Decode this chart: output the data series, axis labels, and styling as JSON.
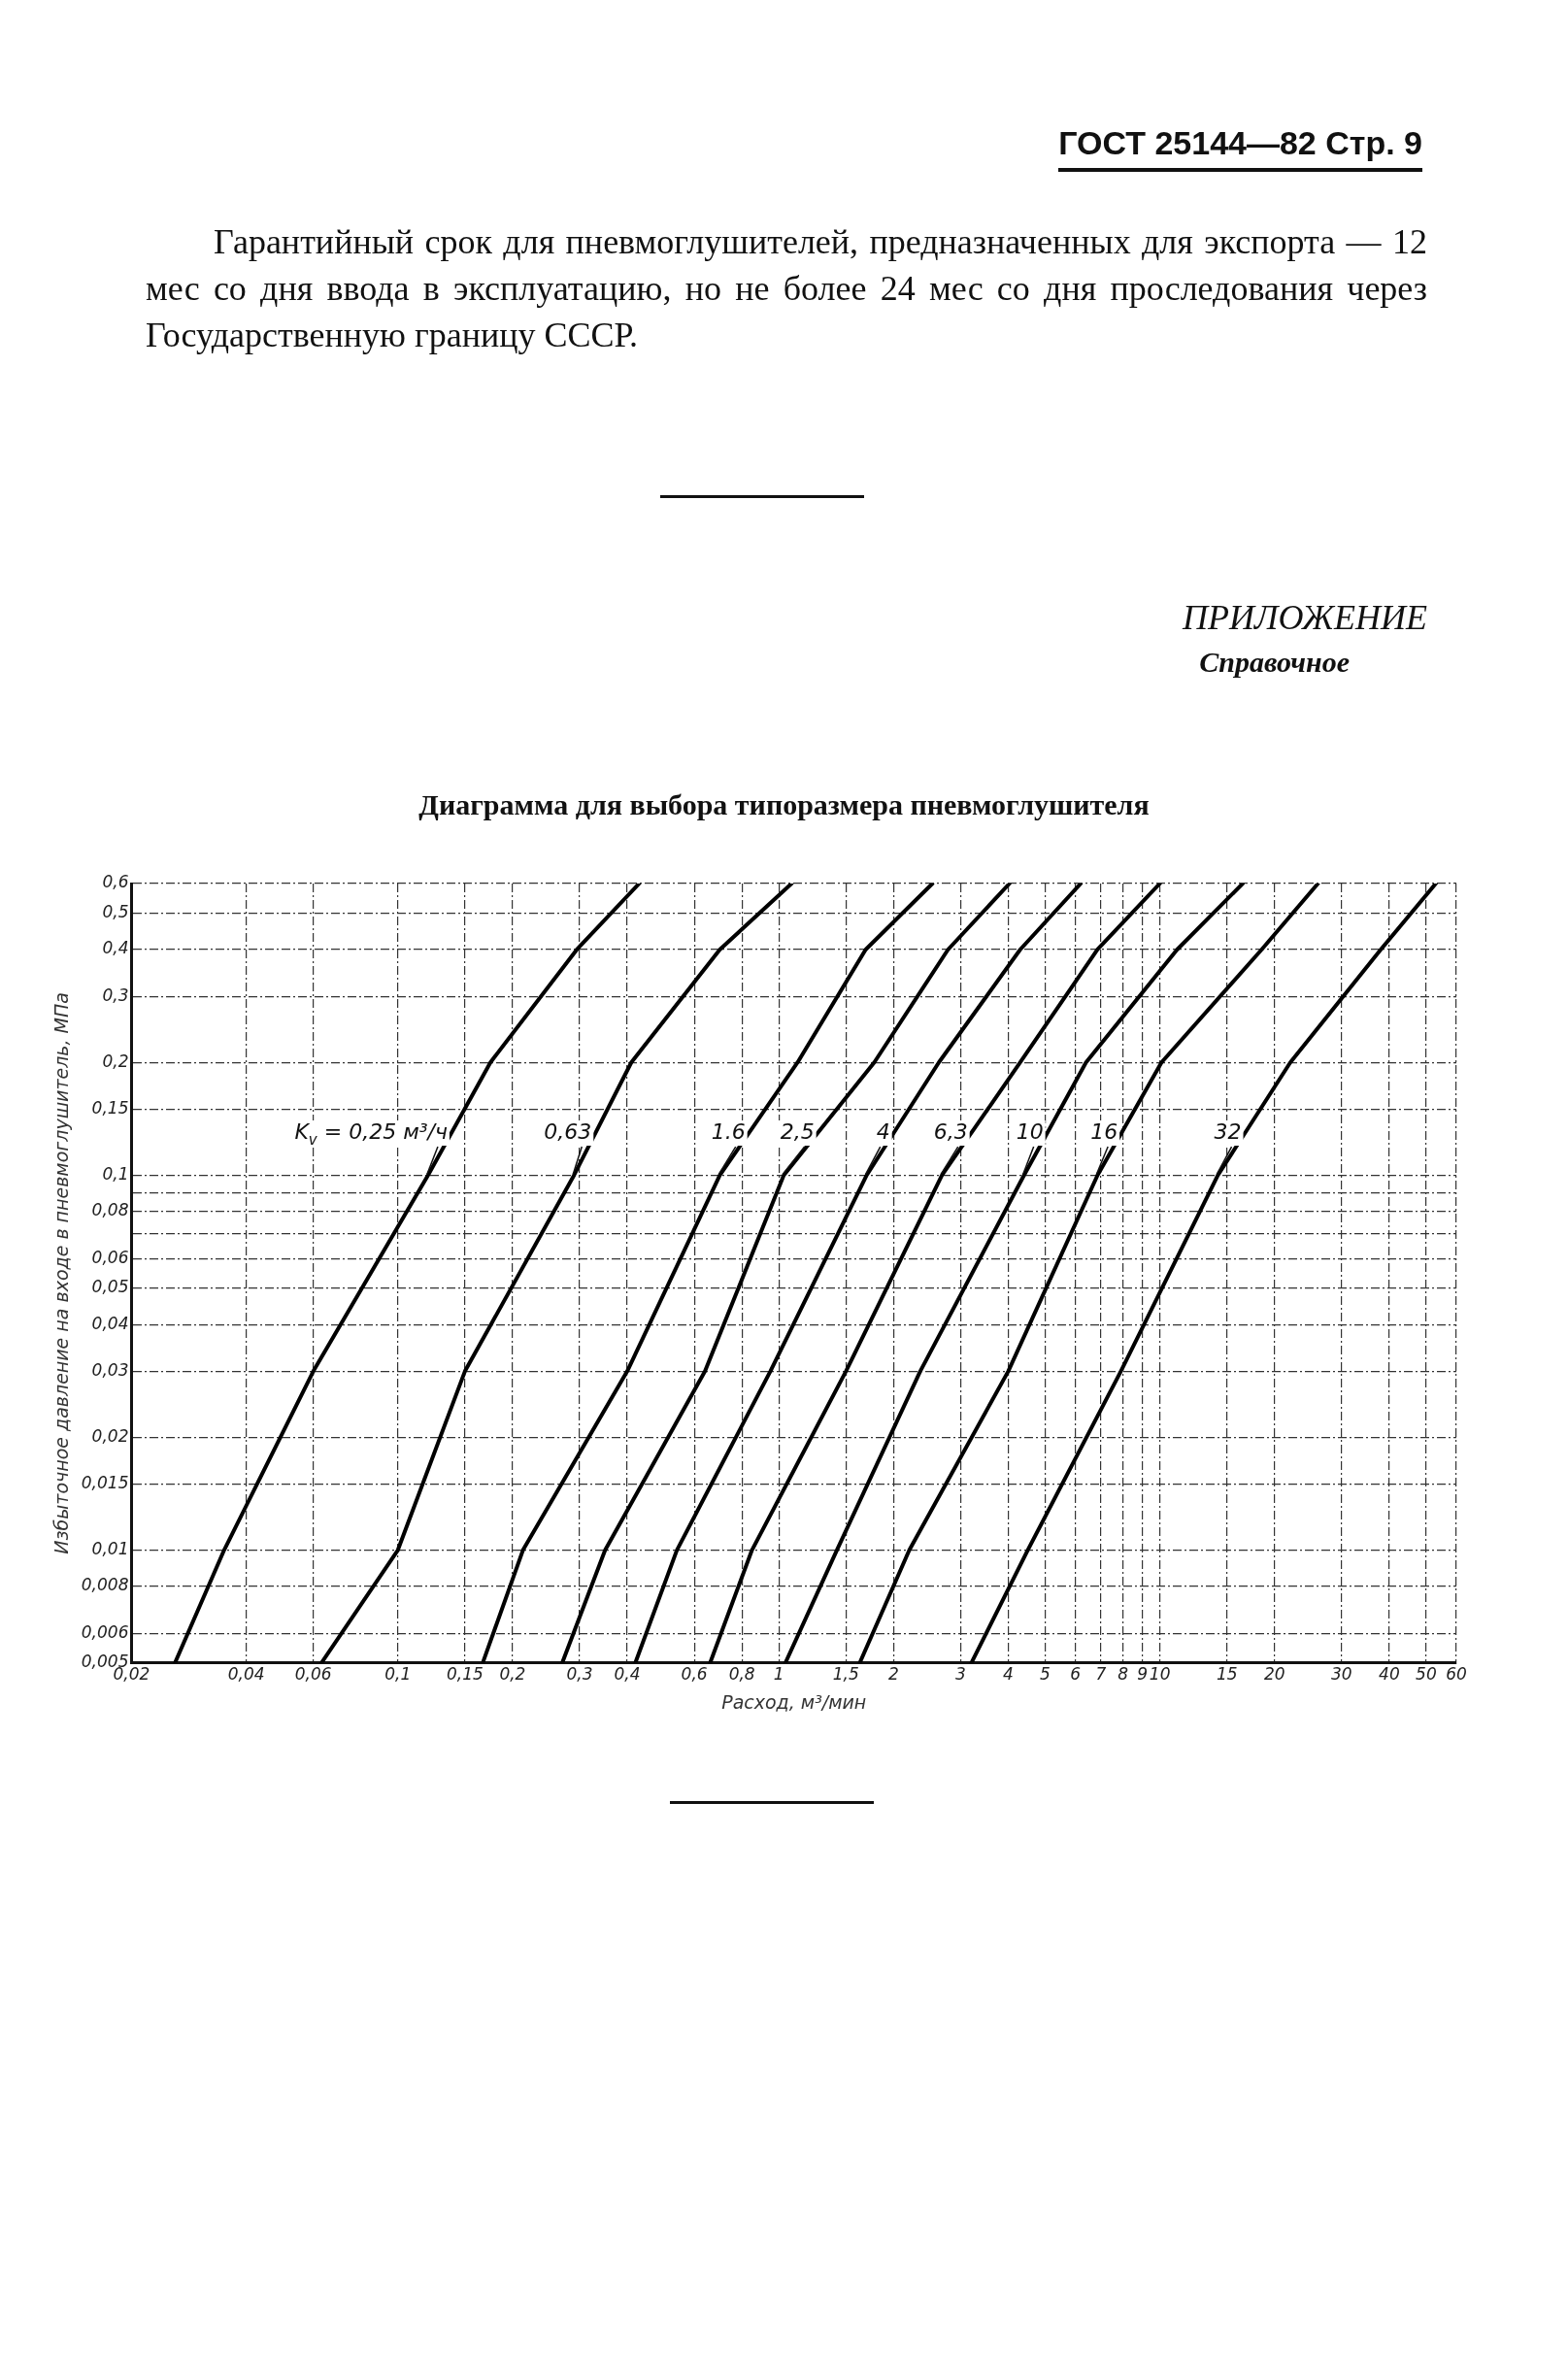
{
  "chart_data": {
    "type": "line",
    "title": "Диаграмма для выбора типоразмера пневмоглушителя",
    "xlabel": "Расход, м³/мин",
    "ylabel": "Избыточное давление на входе в пневмоглушитель, МПа",
    "annotations": [
      "ГОСТ 25144—82 Стр. 9",
      "Гарантийный срок для пневмоглушителей, предназначенных для экспорта — 12 мес со дня ввода в эксплуатацию, но не более 24 мес со дня проследования через Государственную границу СССР.",
      "ПРИЛОЖЕНИЕ",
      "Справочное"
    ],
    "series": [
      {
        "name": "K$_{v}$ = 0,25 м³/ч",
        "color": "#000000",
        "x": [
          0.026,
          0.035,
          0.06,
          0.12,
          0.175,
          0.295,
          0.43
        ],
        "values": [
          0.005,
          0.01,
          0.03,
          0.1,
          0.2,
          0.4,
          0.6
        ]
      },
      {
        "name": "0,63",
        "color": "#000000",
        "x": [
          0.063,
          0.1,
          0.15,
          0.29,
          0.41,
          0.7,
          1.08
        ],
        "values": [
          0.005,
          0.01,
          0.03,
          0.1,
          0.2,
          0.4,
          0.6
        ]
      },
      {
        "name": "1.6",
        "color": "#000000",
        "x": [
          0.167,
          0.213,
          0.4,
          0.7,
          1.12,
          1.69,
          2.53
        ],
        "values": [
          0.005,
          0.01,
          0.03,
          0.1,
          0.2,
          0.4,
          0.6
        ]
      },
      {
        "name": "2,5",
        "color": "#000000",
        "x": [
          0.27,
          0.35,
          0.64,
          1.03,
          1.78,
          2.78,
          4.03
        ],
        "values": [
          0.005,
          0.01,
          0.03,
          0.1,
          0.2,
          0.4,
          0.6
        ]
      },
      {
        "name": "4",
        "color": "#000000",
        "x": [
          0.42,
          0.54,
          0.95,
          1.7,
          2.63,
          4.3,
          6.2
        ],
        "values": [
          0.005,
          0.01,
          0.03,
          0.1,
          0.2,
          0.4,
          0.6
        ]
      },
      {
        "name": "6,3",
        "color": "#000000",
        "x": [
          0.66,
          0.85,
          1.5,
          2.68,
          4.3,
          6.86,
          10
        ],
        "values": [
          0.005,
          0.01,
          0.03,
          0.1,
          0.2,
          0.4,
          0.6
        ]
      },
      {
        "name": "10",
        "color": "#000000",
        "x": [
          1.04,
          1.42,
          2.35,
          4.4,
          6.4,
          11.1,
          16.5
        ],
        "values": [
          0.005,
          0.01,
          0.03,
          0.1,
          0.2,
          0.4,
          0.6
        ]
      },
      {
        "name": "16",
        "color": "#000000",
        "x": [
          1.63,
          2.2,
          4.0,
          6.86,
          10.1,
          18.5,
          26
        ],
        "values": [
          0.005,
          0.01,
          0.03,
          0.1,
          0.2,
          0.4,
          0.6
        ]
      },
      {
        "name": "32",
        "color": "#000000",
        "x": [
          3.2,
          4.5,
          7.9,
          14.2,
          22,
          38,
          53
        ],
        "values": [
          0.005,
          0.01,
          0.03,
          0.1,
          0.2,
          0.4,
          0.6
        ]
      }
    ],
    "xlim": [
      0.02,
      60
    ],
    "ylim": [
      0.005,
      0.6
    ],
    "xticks": [
      {
        "value": 0.02,
        "label": "0,02"
      },
      {
        "value": 0.04,
        "label": "0,04"
      },
      {
        "value": 0.06,
        "label": "0,06"
      },
      {
        "value": 0.1,
        "label": "0,1"
      },
      {
        "value": 0.15,
        "label": "0,15"
      },
      {
        "value": 0.2,
        "label": "0,2"
      },
      {
        "value": 0.3,
        "label": "0,3"
      },
      {
        "value": 0.4,
        "label": "0,4"
      },
      {
        "value": 0.6,
        "label": "0,6"
      },
      {
        "value": 0.8,
        "label": "0,8"
      },
      1,
      {
        "value": 1.5,
        "label": "1,5"
      },
      2,
      3,
      4,
      5,
      6,
      7,
      8,
      9,
      10,
      15,
      20,
      30,
      40,
      50,
      60
    ],
    "yticks": [
      {
        "value": 0.005,
        "label": "0,005"
      },
      {
        "value": 0.006,
        "label": "0,006"
      },
      {
        "value": 0.008,
        "label": "0,008"
      },
      {
        "value": 0.01,
        "label": "0,01"
      },
      {
        "value": 0.015,
        "label": "0,015"
      },
      {
        "value": 0.02,
        "label": "0,02"
      },
      {
        "value": 0.03,
        "label": "0,03"
      },
      {
        "value": 0.04,
        "label": "0,04"
      },
      {
        "value": 0.05,
        "label": "0,05"
      },
      {
        "value": 0.06,
        "label": "0,06"
      },
      {
        "value": 0.07,
        "label": null
      },
      {
        "value": 0.08,
        "label": "0,08"
      },
      {
        "value": 0.09,
        "label": null
      },
      {
        "value": 0.1,
        "label": "0,1"
      },
      {
        "value": 0.15,
        "label": "0,15"
      },
      {
        "value": 0.2,
        "label": "0,2"
      },
      {
        "value": 0.3,
        "label": "0,3"
      },
      {
        "value": 0.4,
        "label": "0,4"
      },
      {
        "value": 0.5,
        "label": "0,5"
      },
      {
        "value": 0.6,
        "label": "0,6"
      }
    ],
    "log": "xy",
    "grid": true,
    "legend": false,
    "marker": "none",
    "line_style": "solid"
  }
}
